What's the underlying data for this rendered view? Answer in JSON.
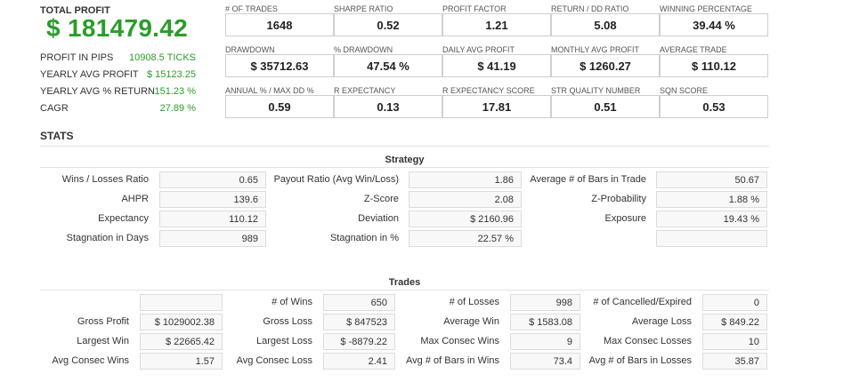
{
  "summary": {
    "total_profit_label": "TOTAL PROFIT",
    "total_profit_value": "$ 181479.42",
    "rows": [
      {
        "label": "PROFIT IN PIPS",
        "value": "10908.5 TICKS"
      },
      {
        "label": "YEARLY AVG PROFIT",
        "value": "$ 15123.25"
      },
      {
        "label": "YEARLY AVG % RETURN",
        "value": "151.23 %"
      },
      {
        "label": "CAGR",
        "value": "27.89 %"
      }
    ]
  },
  "kpis": [
    {
      "label": "# OF TRADES",
      "value": "1648"
    },
    {
      "label": "SHARPE RATIO",
      "value": "0.52"
    },
    {
      "label": "PROFIT FACTOR",
      "value": "1.21"
    },
    {
      "label": "RETURN / DD RATIO",
      "value": "5.08"
    },
    {
      "label": "WINNING PERCENTAGE",
      "value": "39.44 %"
    },
    {
      "label": "DRAWDOWN",
      "value": "$ 35712.63"
    },
    {
      "label": "% DRAWDOWN",
      "value": "47.54 %"
    },
    {
      "label": "DAILY AVG PROFIT",
      "value": "$ 41.19"
    },
    {
      "label": "MONTHLY AVG PROFIT",
      "value": "$ 1260.27"
    },
    {
      "label": "AVERAGE TRADE",
      "value": "$ 110.12"
    },
    {
      "label": "ANNUAL % / MAX DD %",
      "value": "0.59"
    },
    {
      "label": "R EXPECTANCY",
      "value": "0.13"
    },
    {
      "label": "R EXPECTANCY SCORE",
      "value": "17.81"
    },
    {
      "label": "STR QUALITY NUMBER",
      "value": "0.51"
    },
    {
      "label": "SQN SCORE",
      "value": "0.53"
    }
  ],
  "stats_title": "STATS",
  "strategy": {
    "title": "Strategy",
    "rows": [
      [
        {
          "label": "Wins / Losses Ratio",
          "value": "0.65"
        },
        {
          "label": "Payout Ratio (Avg Win/Loss)",
          "value": "1.86"
        },
        {
          "label": "Average # of Bars in Trade",
          "value": "50.67"
        }
      ],
      [
        {
          "label": "AHPR",
          "value": "139.6"
        },
        {
          "label": "Z-Score",
          "value": "2.08"
        },
        {
          "label": "Z-Probability",
          "value": "1.88 %"
        }
      ],
      [
        {
          "label": "Expectancy",
          "value": "110.12"
        },
        {
          "label": "Deviation",
          "value": "$ 2160.96"
        },
        {
          "label": "Exposure",
          "value": "19.43 %"
        }
      ],
      [
        {
          "label": "Stagnation in Days",
          "value": "989"
        },
        {
          "label": "Stagnation in %",
          "value": "22.57 %"
        },
        {
          "label": "",
          "value": ""
        }
      ]
    ]
  },
  "trades": {
    "title": "Trades",
    "rows": [
      [
        {
          "label": "",
          "value": ""
        },
        {
          "label": "# of Wins",
          "value": "650"
        },
        {
          "label": "# of Losses",
          "value": "998"
        },
        {
          "label": "# of Cancelled/Expired",
          "value": "0"
        }
      ],
      [
        {
          "label": "Gross Profit",
          "value": "$ 1029002.38"
        },
        {
          "label": "Gross Loss",
          "value": "$ 847523"
        },
        {
          "label": "Average Win",
          "value": "$ 1583.08"
        },
        {
          "label": "Average Loss",
          "value": "$ 849.22"
        }
      ],
      [
        {
          "label": "Largest Win",
          "value": "$ 22665.42"
        },
        {
          "label": "Largest Loss",
          "value": "$ -8879.22"
        },
        {
          "label": "Max Consec Wins",
          "value": "9"
        },
        {
          "label": "Max Consec Losses",
          "value": "10"
        }
      ],
      [
        {
          "label": "Avg Consec Wins",
          "value": "1.57"
        },
        {
          "label": "Avg Consec Loss",
          "value": "2.41"
        },
        {
          "label": "Avg # of Bars in Wins",
          "value": "73.4"
        },
        {
          "label": "Avg # of Bars in Losses",
          "value": "35.87"
        }
      ]
    ]
  }
}
